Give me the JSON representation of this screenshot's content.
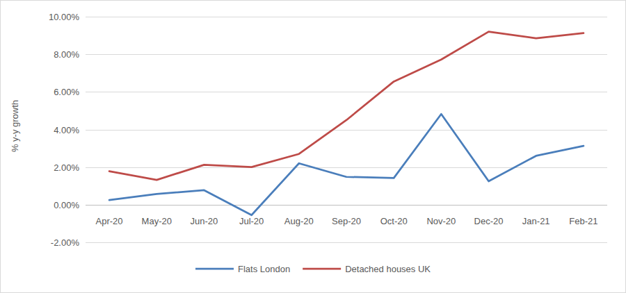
{
  "chart_data": {
    "type": "line",
    "y_label": "% y-y growth",
    "categories": [
      "Apr-20",
      "May-20",
      "Jun-20",
      "Jul-20",
      "Aug-20",
      "Sep-20",
      "Oct-20",
      "Nov-20",
      "Dec-20",
      "Jan-21",
      "Feb-21"
    ],
    "series": [
      {
        "name": "Flats London",
        "color": "#4a7ebb",
        "values": [
          0.25,
          0.57,
          0.77,
          -0.55,
          2.2,
          1.48,
          1.42,
          4.82,
          1.25,
          2.6,
          3.13
        ]
      },
      {
        "name": "Detached houses UK",
        "color": "#be4b48",
        "values": [
          1.78,
          1.32,
          2.12,
          2.0,
          2.7,
          4.5,
          6.55,
          7.72,
          9.2,
          8.85,
          9.13
        ]
      }
    ],
    "ylim": [
      -2,
      10
    ],
    "yticks": [
      {
        "value": -2,
        "label": "-2.00%"
      },
      {
        "value": 0,
        "label": "0.00%"
      },
      {
        "value": 2,
        "label": "2.00%"
      },
      {
        "value": 4,
        "label": "4.00%"
      },
      {
        "value": 6,
        "label": "6.00%"
      },
      {
        "value": 8,
        "label": "8.00%"
      },
      {
        "value": 10,
        "label": "10.00%"
      }
    ],
    "grid": true,
    "legend": "bottom"
  }
}
